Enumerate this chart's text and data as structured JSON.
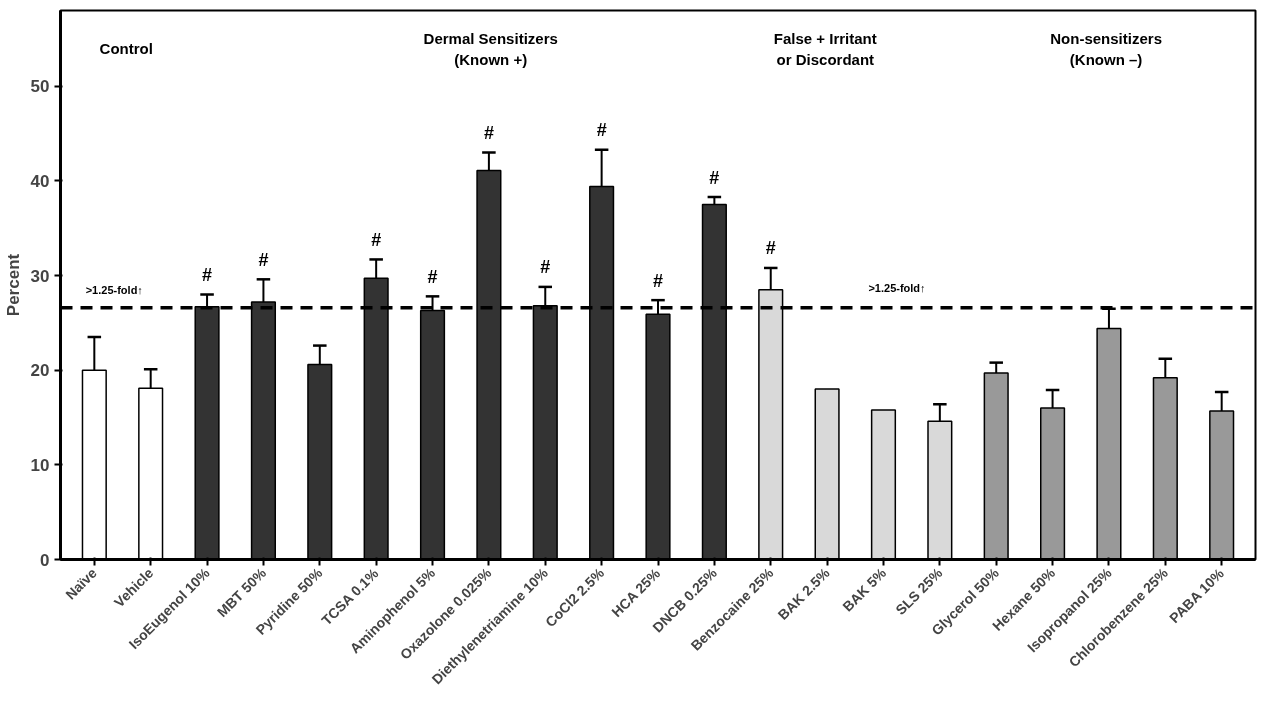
{
  "chart_data": {
    "type": "bar",
    "ylabel": "Percent",
    "categories": [
      "Naïve",
      "Vehicle",
      "IsoEugenol 10%",
      "MBT 50%",
      "Pyridine 50%",
      "TCSA 0.1%",
      "Aminophenol 5%",
      "Oxazolone 0.025%",
      "Diethylenetriamine 10%",
      "CoCl2 2.5%",
      "HCA 25%",
      "DNCB 0.25%",
      "Benzocaine 25%",
      "BAK 2.5%",
      "BAK 5%",
      "SLS 25%",
      "Glycerol 50%",
      "Hexane 50%",
      "Isopropanol 25%",
      "Chlorobenzene 25%",
      "PABA 10%"
    ],
    "values": [
      20.0,
      18.1,
      26.7,
      27.2,
      20.6,
      29.7,
      26.3,
      41.1,
      26.8,
      39.4,
      25.9,
      37.5,
      28.5,
      18.0,
      15.8,
      14.6,
      19.7,
      16.0,
      24.4,
      19.2,
      15.7
    ],
    "errors": [
      3.5,
      2.0,
      1.3,
      2.4,
      2.0,
      2.0,
      1.5,
      1.9,
      2.0,
      3.9,
      1.5,
      0.8,
      2.3,
      null,
      null,
      1.8,
      1.1,
      1.9,
      2.1,
      2.0,
      2.0
    ],
    "colors": [
      "#ffffff",
      "#ffffff",
      "#333333",
      "#333333",
      "#333333",
      "#333333",
      "#333333",
      "#333333",
      "#333333",
      "#333333",
      "#333333",
      "#333333",
      "#d9d9d9",
      "#d9d9d9",
      "#d9d9d9",
      "#d9d9d9",
      "#999999",
      "#999999",
      "#999999",
      "#999999",
      "#999999"
    ],
    "value_labels": [
      null,
      null,
      "#",
      "#",
      null,
      "#",
      "#",
      "#",
      "#",
      "#",
      "#",
      "#",
      "#",
      null,
      null,
      null,
      null,
      null,
      null,
      null,
      null
    ],
    "ylim": [
      0,
      58
    ],
    "yticks": [
      0,
      10,
      20,
      30,
      40,
      50
    ],
    "grid": false,
    "ref_lines": [
      {
        "axis": "y",
        "value": 26.6,
        "label": null,
        "line_style": "dashed",
        "color": "#000000"
      }
    ],
    "annotations": [
      "Control",
      "Dermal Sensitizers\n(Known +)",
      "False + Irritant\nor Discordant",
      "Non-sensitizers\n(Known –)",
      ">1.25-fold↑",
      ">1.25-fold↑"
    ]
  }
}
